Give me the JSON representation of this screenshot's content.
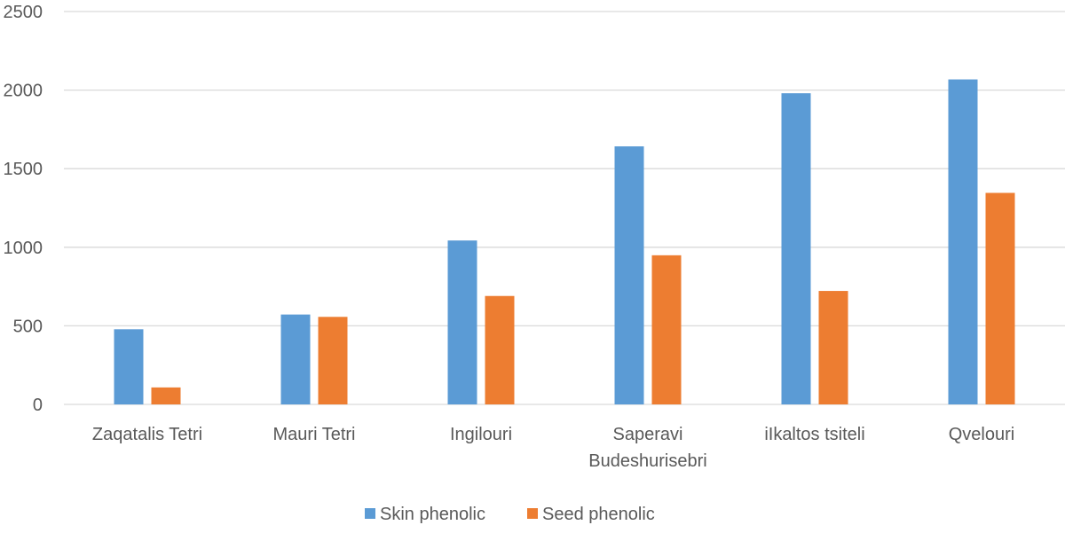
{
  "chart_data": {
    "type": "bar",
    "categories": [
      [
        "Zaqatalis Tetri"
      ],
      [
        "Mauri Tetri"
      ],
      [
        "Ingilouri"
      ],
      [
        "Saperavi",
        "Budeshurisebri"
      ],
      [
        "iIkaltos tsiteli"
      ],
      [
        "Qvelouri"
      ]
    ],
    "series": [
      {
        "name": "Skin phenolic",
        "color": "#5B9BD5",
        "values": [
          478,
          572,
          1043,
          1642,
          1980,
          2068
        ]
      },
      {
        "name": "Seed phenolic",
        "color": "#ED7D31",
        "values": [
          108,
          557,
          690,
          949,
          722,
          1346
        ]
      }
    ],
    "ylim": [
      0,
      2500
    ],
    "yticks": [
      0,
      500,
      1000,
      1500,
      2000,
      2500
    ],
    "grid": true,
    "legend_position": "bottom"
  }
}
